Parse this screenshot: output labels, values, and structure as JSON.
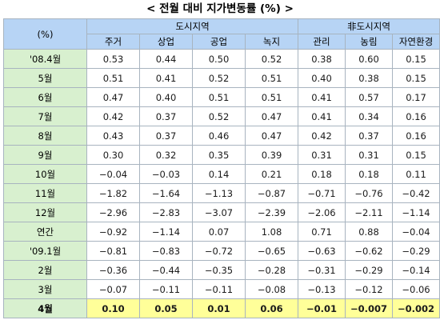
{
  "title": "< 전월 대비 지가변동률 (%) >",
  "header": {
    "corner": "(%)",
    "groups": [
      "도시지역",
      "非도시지역"
    ],
    "columns": [
      "주거",
      "상업",
      "공업",
      "녹지",
      "관리",
      "농림",
      "자연환경"
    ]
  },
  "rows": [
    {
      "label": "'08.4월",
      "values": [
        "0.53",
        "0.44",
        "0.50",
        "0.52",
        "0.38",
        "0.60",
        "0.15"
      ]
    },
    {
      "label": "5월",
      "values": [
        "0.51",
        "0.41",
        "0.52",
        "0.51",
        "0.40",
        "0.38",
        "0.15"
      ]
    },
    {
      "label": "6월",
      "values": [
        "0.47",
        "0.40",
        "0.51",
        "0.51",
        "0.41",
        "0.57",
        "0.17"
      ]
    },
    {
      "label": "7월",
      "values": [
        "0.42",
        "0.37",
        "0.52",
        "0.47",
        "0.41",
        "0.34",
        "0.16"
      ]
    },
    {
      "label": "8월",
      "values": [
        "0.43",
        "0.37",
        "0.46",
        "0.47",
        "0.42",
        "0.37",
        "0.16"
      ]
    },
    {
      "label": "9월",
      "values": [
        "0.30",
        "0.32",
        "0.35",
        "0.39",
        "0.31",
        "0.31",
        "0.15"
      ]
    },
    {
      "label": "10월",
      "values": [
        "−0.04",
        "−0.03",
        "0.14",
        "0.21",
        "0.18",
        "0.18",
        "0.11"
      ]
    },
    {
      "label": "11월",
      "values": [
        "−1.82",
        "−1.64",
        "−1.13",
        "−0.87",
        "−0.71",
        "−0.76",
        "−0.42"
      ]
    },
    {
      "label": "12월",
      "values": [
        "−2.96",
        "−2.83",
        "−3.07",
        "−2.39",
        "−2.06",
        "−2.11",
        "−1.14"
      ]
    },
    {
      "label": "연간",
      "values": [
        "−0.92",
        "−1.14",
        "0.07",
        "1.08",
        "0.71",
        "0.88",
        "−0.04"
      ]
    },
    {
      "label": "'09.1월",
      "values": [
        "−0.81",
        "−0.83",
        "−0.72",
        "−0.65",
        "−0.63",
        "−0.62",
        "−0.29"
      ]
    },
    {
      "label": "2월",
      "values": [
        "−0.36",
        "−0.44",
        "−0.35",
        "−0.28",
        "−0.31",
        "−0.29",
        "−0.14"
      ]
    },
    {
      "label": "3월",
      "values": [
        "−0.07",
        "−0.11",
        "−0.11",
        "−0.08",
        "−0.13",
        "−0.12",
        "−0.06"
      ]
    },
    {
      "label": "4월",
      "values": [
        "0.10",
        "0.05",
        "0.01",
        "0.06",
        "−0.01",
        "−0.007",
        "−0.002"
      ],
      "highlight": true
    }
  ],
  "colors": {
    "header_bg": "#b7d4f5",
    "row_label_bg": "#d8f0cf",
    "highlight_bg": "#ffff99",
    "border": "#a8b4c0"
  }
}
